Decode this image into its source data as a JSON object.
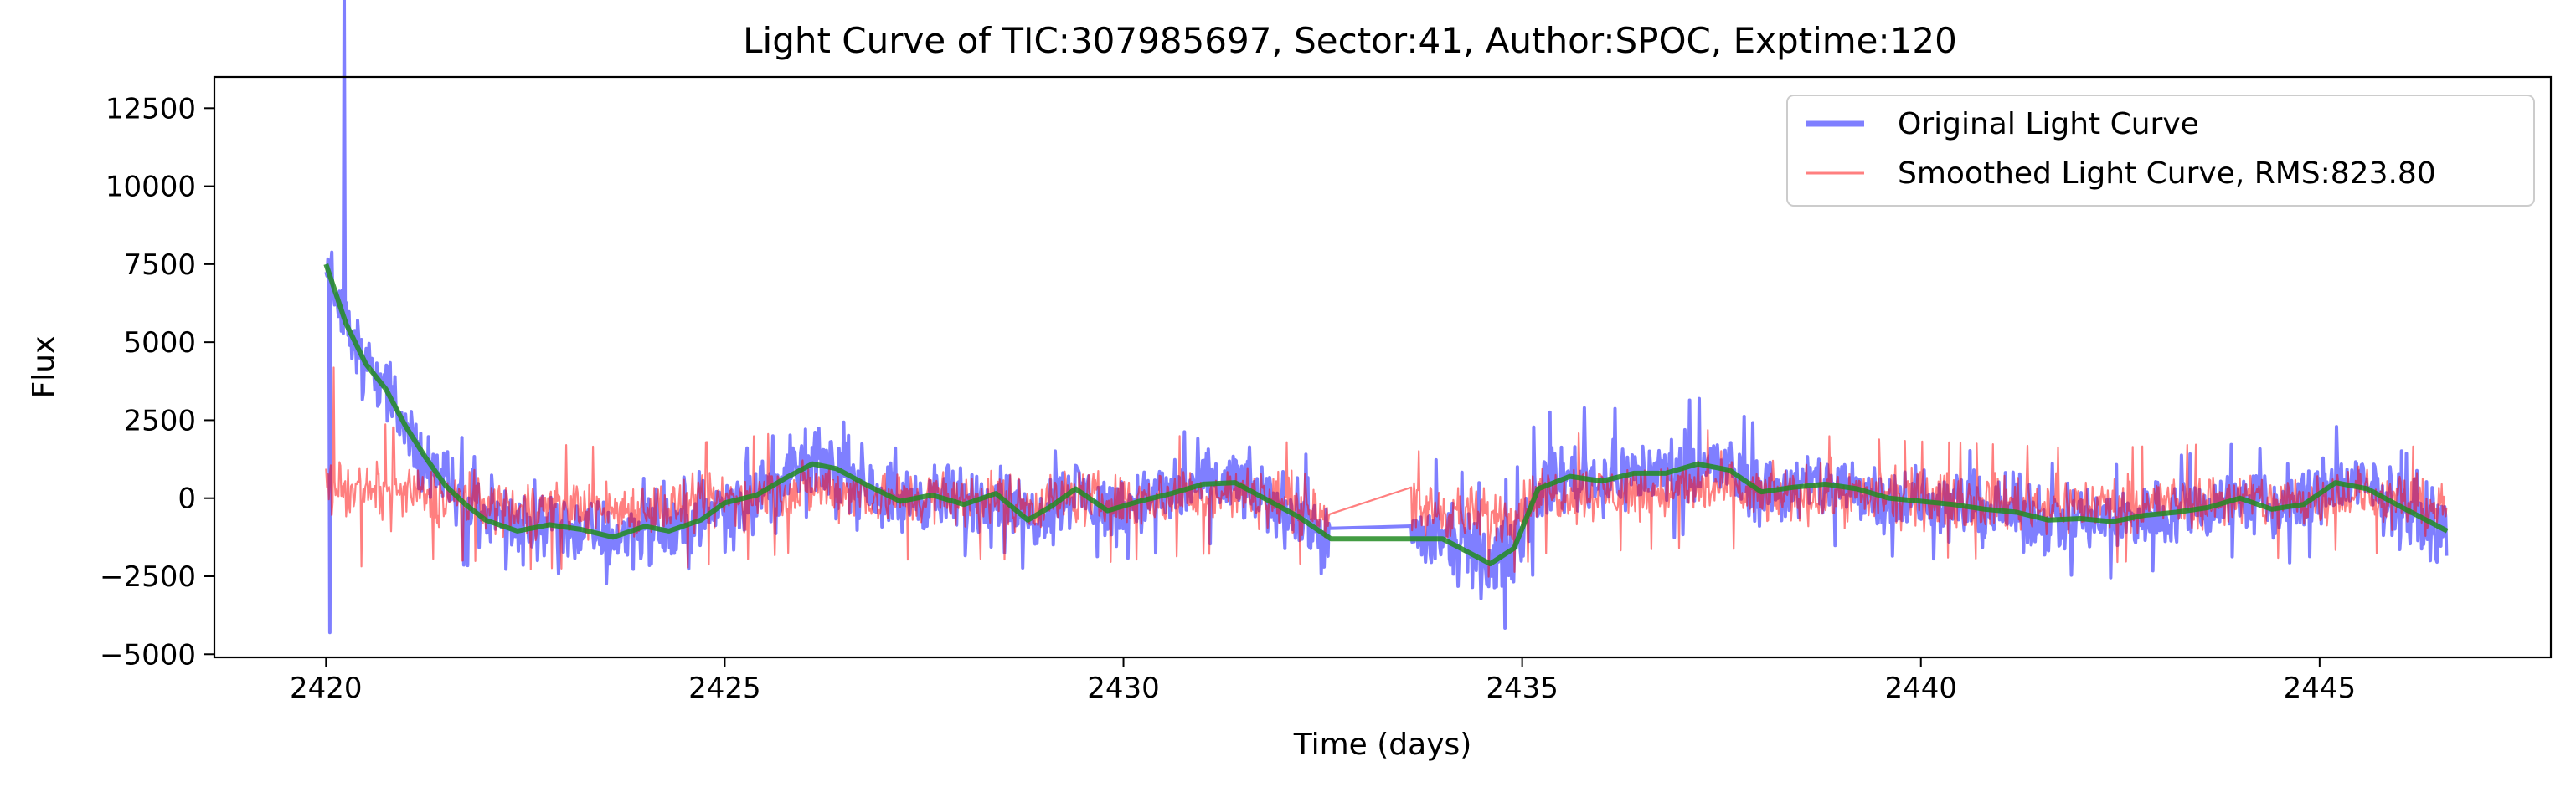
{
  "chart_data": {
    "type": "line",
    "title": "Light Curve of TIC:307985697, Sector:41, Author:SPOC, Exptime:120",
    "xlabel": "Time (days)",
    "ylabel": "Flux",
    "xlim": [
      2418.6,
      2447.9
    ],
    "ylim": [
      -5100,
      13500
    ],
    "xticks": [
      2420,
      2425,
      2430,
      2435,
      2440,
      2445
    ],
    "yticks": [
      -5000,
      -2500,
      0,
      2500,
      5000,
      7500,
      10000,
      12500
    ],
    "xtick_labels": [
      "2420",
      "2425",
      "2430",
      "2435",
      "2440",
      "2445"
    ],
    "ytick_labels": [
      "−5000",
      "−2500",
      "0",
      "2500",
      "5000",
      "7500",
      "10000",
      "12500"
    ],
    "grid": false,
    "legend_position": "top-right",
    "gap": [
      2432.6,
      2433.6
    ],
    "series": [
      {
        "name": "Original Light Curve",
        "color": "#0000ff",
        "opacity": 0.5,
        "amplitude": 1600,
        "envelope": [
          [
            2420,
            12500
          ],
          [
            2420.5,
            7800
          ],
          [
            2421,
            4200
          ],
          [
            2421.5,
            2400
          ],
          [
            2422,
            1500
          ],
          [
            2426,
            1600
          ],
          [
            2430,
            1700
          ],
          [
            2432.5,
            2200
          ],
          [
            2433.6,
            2600
          ],
          [
            2434.5,
            2400
          ],
          [
            2440,
            1800
          ],
          [
            2446.6,
            1800
          ]
        ]
      },
      {
        "name": "Smoothed Light Curve, RMS:823.80",
        "color": "#ff0000",
        "opacity": 0.5,
        "amplitude": 1300,
        "envelope": [
          [
            2420,
            5000
          ],
          [
            2420.2,
            2600
          ],
          [
            2421,
            2000
          ],
          [
            2446.6,
            1800
          ]
        ]
      },
      {
        "name": "",
        "color": "#228b22",
        "opacity": 0.85,
        "points": [
          [
            2420,
            7500
          ],
          [
            2420.25,
            5600
          ],
          [
            2420.5,
            4300
          ],
          [
            2420.75,
            3500
          ],
          [
            2421,
            2300
          ],
          [
            2421.25,
            1300
          ],
          [
            2421.5,
            400
          ],
          [
            2421.75,
            -200
          ],
          [
            2422,
            -700
          ],
          [
            2422.4,
            -1050
          ],
          [
            2422.8,
            -850
          ],
          [
            2423.2,
            -1000
          ],
          [
            2423.6,
            -1250
          ],
          [
            2424,
            -900
          ],
          [
            2424.3,
            -1050
          ],
          [
            2424.7,
            -700
          ],
          [
            2425,
            -150
          ],
          [
            2425.4,
            100
          ],
          [
            2425.8,
            700
          ],
          [
            2426.1,
            1100
          ],
          [
            2426.4,
            950
          ],
          [
            2426.8,
            400
          ],
          [
            2427.2,
            -100
          ],
          [
            2427.6,
            100
          ],
          [
            2428,
            -200
          ],
          [
            2428.4,
            150
          ],
          [
            2428.8,
            -700
          ],
          [
            2429.1,
            -250
          ],
          [
            2429.4,
            300
          ],
          [
            2429.8,
            -400
          ],
          [
            2430.2,
            -100
          ],
          [
            2430.6,
            150
          ],
          [
            2431,
            450
          ],
          [
            2431.4,
            500
          ],
          [
            2431.8,
            -50
          ],
          [
            2432.2,
            -600
          ],
          [
            2432.6,
            -1300
          ],
          [
            2433.6,
            -1300
          ],
          [
            2434,
            -1300
          ],
          [
            2434.3,
            -1700
          ],
          [
            2434.6,
            -2100
          ],
          [
            2434.9,
            -1600
          ],
          [
            2435.2,
            300
          ],
          [
            2435.6,
            700
          ],
          [
            2436,
            550
          ],
          [
            2436.4,
            800
          ],
          [
            2436.8,
            800
          ],
          [
            2437.2,
            1100
          ],
          [
            2437.6,
            900
          ],
          [
            2438,
            200
          ],
          [
            2438.4,
            350
          ],
          [
            2438.8,
            450
          ],
          [
            2439.2,
            300
          ],
          [
            2439.6,
            0
          ],
          [
            2440,
            -100
          ],
          [
            2440.4,
            -200
          ],
          [
            2440.8,
            -350
          ],
          [
            2441.2,
            -450
          ],
          [
            2441.6,
            -700
          ],
          [
            2442,
            -650
          ],
          [
            2442.4,
            -750
          ],
          [
            2442.8,
            -550
          ],
          [
            2443.2,
            -450
          ],
          [
            2443.6,
            -300
          ],
          [
            2444,
            0
          ],
          [
            2444.4,
            -350
          ],
          [
            2444.8,
            -200
          ],
          [
            2445.2,
            500
          ],
          [
            2445.6,
            300
          ],
          [
            2446,
            -250
          ],
          [
            2446.6,
            -1050
          ]
        ]
      }
    ]
  }
}
